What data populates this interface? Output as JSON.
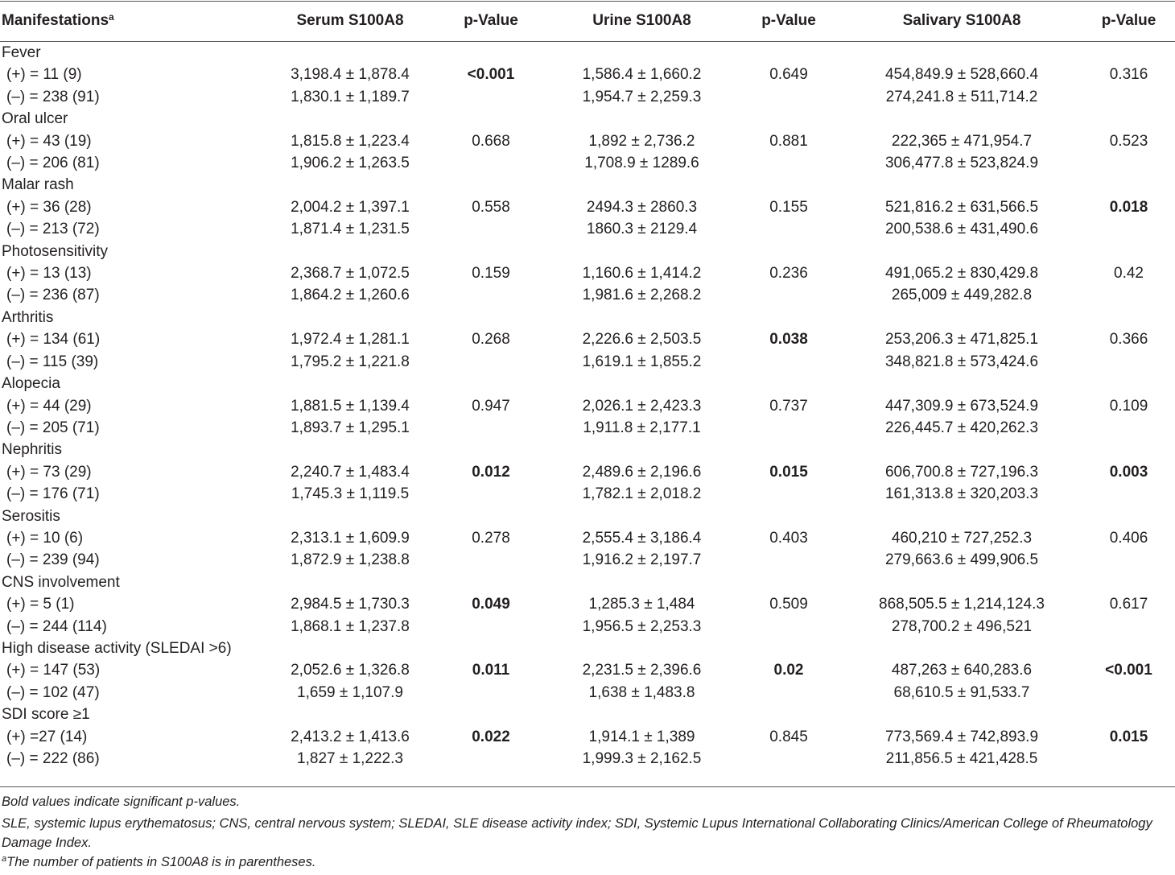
{
  "table": {
    "headers": {
      "manifestations": "Manifestations",
      "manifestations_sup": "a",
      "serum": "Serum S100A8",
      "p1": "p-Value",
      "urine": "Urine S100A8",
      "p2": "p-Value",
      "salivary": "Salivary S100A8",
      "p3": "p-Value"
    },
    "groups": [
      {
        "name": "Fever",
        "pos": {
          "label": "(+) = 11 (9)",
          "serum": "3,198.4 ± 1,878.4",
          "urine": "1,586.4 ± 1,660.2",
          "salivary": "454,849.9 ± 528,660.4"
        },
        "neg": {
          "label": "(–) = 238 (91)",
          "serum": "1,830.1 ± 1,189.7",
          "urine": "1,954.7 ± 2,259.3",
          "salivary": "274,241.8 ± 511,714.2"
        },
        "p_serum": "<0.001",
        "p_serum_bold": true,
        "p_urine": "0.649",
        "p_urine_bold": false,
        "p_salivary": "0.316",
        "p_salivary_bold": false
      },
      {
        "name": "Oral ulcer",
        "pos": {
          "label": "(+) = 43 (19)",
          "serum": "1,815.8 ± 1,223.4",
          "urine": "1,892 ± 2,736.2",
          "salivary": "222,365 ± 471,954.7"
        },
        "neg": {
          "label": "(–) = 206 (81)",
          "serum": "1,906.2 ± 1,263.5",
          "urine": "1,708.9 ± 1289.6",
          "salivary": "306,477.8 ± 523,824.9"
        },
        "p_serum": "0.668",
        "p_serum_bold": false,
        "p_urine": "0.881",
        "p_urine_bold": false,
        "p_salivary": "0.523",
        "p_salivary_bold": false
      },
      {
        "name": "Malar rash",
        "pos": {
          "label": "(+) = 36 (28)",
          "serum": "2,004.2 ± 1,397.1",
          "urine": "2494.3 ± 2860.3",
          "salivary": "521,816.2 ± 631,566.5"
        },
        "neg": {
          "label": "(–) = 213 (72)",
          "serum": "1,871.4 ± 1,231.5",
          "urine": "1860.3 ± 2129.4",
          "salivary": "200,538.6 ± 431,490.6"
        },
        "p_serum": "0.558",
        "p_serum_bold": false,
        "p_urine": "0.155",
        "p_urine_bold": false,
        "p_salivary": "0.018",
        "p_salivary_bold": true
      },
      {
        "name": "Photosensitivity",
        "pos": {
          "label": "(+) = 13 (13)",
          "serum": "2,368.7 ± 1,072.5",
          "urine": "1,160.6 ± 1,414.2",
          "salivary": "491,065.2 ± 830,429.8"
        },
        "neg": {
          "label": "(–) = 236 (87)",
          "serum": "1,864.2 ± 1,260.6",
          "urine": "1,981.6 ± 2,268.2",
          "salivary": "265,009 ± 449,282.8"
        },
        "p_serum": "0.159",
        "p_serum_bold": false,
        "p_urine": "0.236",
        "p_urine_bold": false,
        "p_salivary": "0.42",
        "p_salivary_bold": false
      },
      {
        "name": "Arthritis",
        "pos": {
          "label": "(+) = 134 (61)",
          "serum": "1,972.4 ± 1,281.1",
          "urine": "2,226.6 ± 2,503.5",
          "salivary": "253,206.3 ± 471,825.1"
        },
        "neg": {
          "label": "(–) = 115 (39)",
          "serum": "1,795.2 ± 1,221.8",
          "urine": "1,619.1 ± 1,855.2",
          "salivary": "348,821.8 ± 573,424.6"
        },
        "p_serum": "0.268",
        "p_serum_bold": false,
        "p_urine": "0.038",
        "p_urine_bold": true,
        "p_salivary": "0.366",
        "p_salivary_bold": false
      },
      {
        "name": "Alopecia",
        "pos": {
          "label": "(+) = 44 (29)",
          "serum": "1,881.5 ± 1,139.4",
          "urine": "2,026.1 ± 2,423.3",
          "salivary": "447,309.9 ± 673,524.9"
        },
        "neg": {
          "label": "(–) = 205 (71)",
          "serum": "1,893.7 ± 1,295.1",
          "urine": "1,911.8 ± 2,177.1",
          "salivary": "226,445.7 ± 420,262.3"
        },
        "p_serum": "0.947",
        "p_serum_bold": false,
        "p_urine": "0.737",
        "p_urine_bold": false,
        "p_salivary": "0.109",
        "p_salivary_bold": false
      },
      {
        "name": "Nephritis",
        "pos": {
          "label": "(+) = 73 (29)",
          "serum": "2,240.7 ± 1,483.4",
          "urine": "2,489.6 ± 2,196.6",
          "salivary": "606,700.8 ± 727,196.3"
        },
        "neg": {
          "label": "(–) = 176 (71)",
          "serum": "1,745.3 ± 1,119.5",
          "urine": "1,782.1 ± 2,018.2",
          "salivary": "161,313.8 ± 320,203.3"
        },
        "p_serum": "0.012",
        "p_serum_bold": true,
        "p_urine": "0.015",
        "p_urine_bold": true,
        "p_salivary": "0.003",
        "p_salivary_bold": true
      },
      {
        "name": "Serositis",
        "pos": {
          "label": "(+) = 10 (6)",
          "serum": "2,313.1 ± 1,609.9",
          "urine": "2,555.4 ± 3,186.4",
          "salivary": "460,210 ± 727,252.3"
        },
        "neg": {
          "label": "(–) = 239 (94)",
          "serum": "1,872.9 ± 1,238.8",
          "urine": "1,916.2 ± 2,197.7",
          "salivary": "279,663.6 ± 499,906.5"
        },
        "p_serum": "0.278",
        "p_serum_bold": false,
        "p_urine": "0.403",
        "p_urine_bold": false,
        "p_salivary": "0.406",
        "p_salivary_bold": false
      },
      {
        "name": "CNS involvement",
        "pos": {
          "label": "(+) = 5 (1)",
          "serum": "2,984.5 ± 1,730.3",
          "urine": "1,285.3 ± 1,484",
          "salivary": "868,505.5 ± 1,214,124.3"
        },
        "neg": {
          "label": "(–) = 244 (114)",
          "serum": "1,868.1 ± 1,237.8",
          "urine": "1,956.5 ± 2,253.3",
          "salivary": "278,700.2 ± 496,521"
        },
        "p_serum": "0.049",
        "p_serum_bold": true,
        "p_urine": "0.509",
        "p_urine_bold": false,
        "p_salivary": "0.617",
        "p_salivary_bold": false
      },
      {
        "name": "High disease activity (SLEDAI >6)",
        "pos": {
          "label": "(+) = 147 (53)",
          "serum": "2,052.6 ± 1,326.8",
          "urine": "2,231.5 ± 2,396.6",
          "salivary": "487,263 ± 640,283.6"
        },
        "neg": {
          "label": "(–) = 102 (47)",
          "serum": "1,659 ± 1,107.9",
          "urine": "1,638 ± 1,483.8",
          "salivary": "68,610.5 ± 91,533.7"
        },
        "p_serum": "0.011",
        "p_serum_bold": true,
        "p_urine": "0.02",
        "p_urine_bold": true,
        "p_salivary": "<0.001",
        "p_salivary_bold": true
      },
      {
        "name": "SDI score ≥1",
        "pos": {
          "label": "(+) =27 (14)",
          "serum": "2,413.2 ± 1,413.6",
          "urine": "1,914.1 ± 1,389",
          "salivary": "773,569.4 ± 742,893.9"
        },
        "neg": {
          "label": "(–) = 222 (86)",
          "serum": "1,827 ± 1,222.3",
          "urine": "1,999.3 ± 2,162.5",
          "salivary": "211,856.5 ± 421,428.5"
        },
        "p_serum": "0.022",
        "p_serum_bold": true,
        "p_urine": "0.845",
        "p_urine_bold": false,
        "p_salivary": "0.015",
        "p_salivary_bold": true
      }
    ]
  },
  "footnotes": {
    "bold_note": "Bold values indicate significant p-values.",
    "abbrev": "SLE, systemic lupus erythematosus; CNS, central nervous system; SLEDAI, SLE disease activity index; SDI, Systemic Lupus International Collaborating Clinics/American College of Rheumatology Damage Index.",
    "a_mark": "a",
    "a_note": "The number of patients in S100A8 is in parentheses."
  }
}
